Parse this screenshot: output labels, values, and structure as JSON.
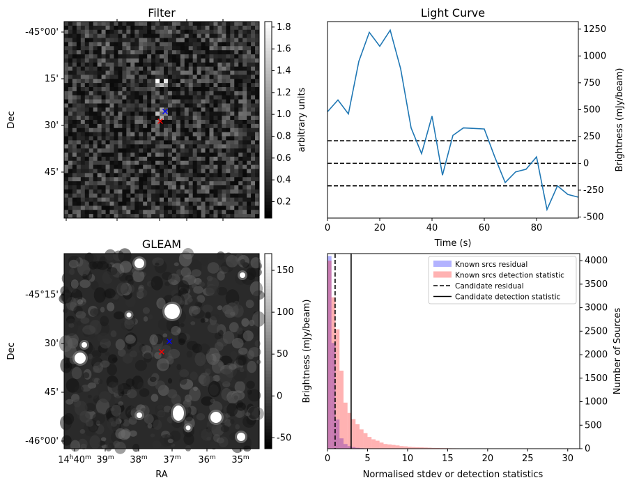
{
  "chart_data": [
    {
      "type": "heatmap",
      "title": "Filter",
      "ylabel": "Dec",
      "yticks": [
        "-45°00'",
        "15'",
        "30'",
        "45'"
      ],
      "colorbar": {
        "label": "arbitrary units",
        "range": [
          0.05,
          1.85
        ],
        "ticks": [
          "0.2",
          "0.4",
          "0.6",
          "0.8",
          "1.0",
          "1.2",
          "1.4",
          "1.6",
          "1.8"
        ]
      },
      "markers": [
        {
          "symbol": "x",
          "color": "#0000ff"
        },
        {
          "symbol": "x",
          "color": "#ff0000"
        }
      ]
    },
    {
      "type": "line",
      "title": "Light Curve",
      "xlabel": "Time (s)",
      "ylabel": "Brightness (mJy/beam)",
      "xlim": [
        0,
        96
      ],
      "ylim": [
        -510,
        1320
      ],
      "xticks": [
        "0",
        "20",
        "40",
        "60",
        "80"
      ],
      "yticks": [
        "-500",
        "-250",
        "0",
        "250",
        "500",
        "750",
        "1000",
        "1250"
      ],
      "x": [
        0,
        4,
        8,
        12,
        16,
        20,
        24,
        28,
        32,
        36,
        40,
        44,
        48,
        52,
        56,
        60,
        64,
        68,
        72,
        76,
        80,
        84,
        88,
        92,
        96
      ],
      "values": [
        480,
        590,
        460,
        950,
        1220,
        1090,
        1240,
        880,
        330,
        90,
        440,
        -110,
        260,
        330,
        325,
        320,
        60,
        -180,
        -80,
        -55,
        60,
        -430,
        -210,
        -290,
        -315
      ],
      "color": "#1f77b4",
      "hlines": [
        210,
        0,
        -210
      ]
    },
    {
      "type": "heatmap",
      "title": "GLEAM",
      "xlabel": "RA",
      "ylabel": "Dec",
      "yticks": [
        "-45°15'",
        "30'",
        "45'",
        "-46°00'"
      ],
      "xticks": [
        "14h40m",
        "39m",
        "38m",
        "37m",
        "36m",
        "35m"
      ],
      "colorbar": {
        "label": "Brightness (mJy/beam)",
        "range": [
          -63,
          170
        ],
        "ticks": [
          "-50",
          "0",
          "50",
          "100",
          "150"
        ]
      },
      "markers": [
        {
          "symbol": "x",
          "color": "#0000ff"
        },
        {
          "symbol": "x",
          "color": "#ff0000"
        }
      ]
    },
    {
      "type": "bar",
      "xlabel": "Normalised stdev or detection statistics",
      "ylabel": "Number of Sources",
      "xlim": [
        0,
        31.5
      ],
      "ylim": [
        0,
        4150
      ],
      "xticks": [
        "0",
        "5",
        "10",
        "15",
        "20",
        "25",
        "30"
      ],
      "yticks": [
        "0",
        "500",
        "1000",
        "1500",
        "2000",
        "2500",
        "3000",
        "3500",
        "4000"
      ],
      "bin_width": 0.5,
      "series": [
        {
          "name": "Known srcs residual",
          "color": "#0000ff",
          "values": [
            4100,
            2250,
            620,
            220,
            100,
            55,
            35,
            20,
            12,
            8,
            5,
            3,
            2,
            2,
            1,
            1
          ]
        },
        {
          "name": "Known srcs detection statistic",
          "color": "#ff0000",
          "values": [
            4000,
            3220,
            2540,
            1660,
            980,
            760,
            630,
            520,
            410,
            330,
            250,
            200,
            170,
            130,
            100,
            90,
            80,
            70,
            55,
            50,
            40,
            35,
            30,
            28,
            25,
            22,
            18,
            15,
            13,
            12,
            10,
            9,
            8,
            7,
            6,
            6,
            5,
            5,
            4,
            4,
            3,
            3,
            3,
            2,
            2,
            2,
            2,
            2,
            2,
            1,
            1,
            1,
            1,
            1,
            1,
            1,
            1,
            1,
            1,
            1
          ]
        }
      ],
      "vlines": [
        {
          "name": "Candidate residual",
          "x": 0.95,
          "style": "dashed"
        },
        {
          "name": "Candidate detection statistic",
          "x": 2.95,
          "style": "solid"
        }
      ],
      "legend": "top-right"
    }
  ]
}
